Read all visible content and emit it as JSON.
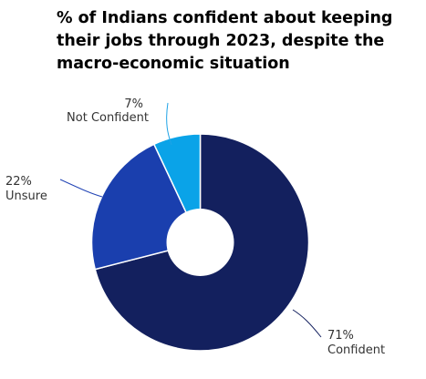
{
  "title_lines": [
    "% of Indians confident about keeping",
    "their jobs through 2023, despite the",
    "macro-economic situation"
  ],
  "chart_data": {
    "type": "pie",
    "donut": true,
    "title": "% of Indians confident about keeping their jobs through 2023, despite the macro-economic situation",
    "categories": [
      "Confident",
      "Unsure",
      "Not Confident"
    ],
    "values": [
      71,
      22,
      7
    ],
    "value_labels": [
      "71%",
      "22%",
      "7%"
    ],
    "colors": [
      "#13205e",
      "#1a3fae",
      "#0aa3e8"
    ],
    "legend": "none"
  }
}
